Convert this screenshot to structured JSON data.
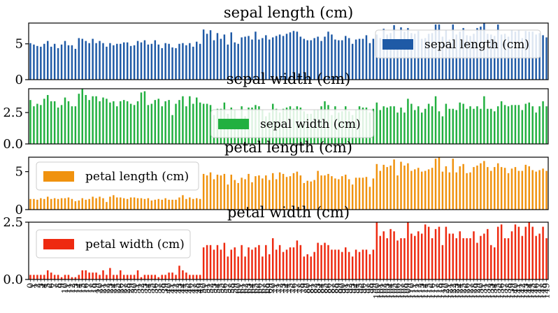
{
  "chart_data": [
    {
      "type": "bar",
      "title": "sepal length (cm)",
      "ylim": [
        0,
        7.9
      ],
      "yticks": [
        "0",
        "5"
      ],
      "ytick_values": [
        0,
        5
      ],
      "legend": "top-right",
      "series": [
        {
          "name": "sepal length (cm)",
          "color": "#1f5aa6",
          "values": [
            5.1,
            4.9,
            4.7,
            4.6,
            5.0,
            5.4,
            4.6,
            5.0,
            4.4,
            4.9,
            5.4,
            4.8,
            4.8,
            4.3,
            5.8,
            5.7,
            5.4,
            5.1,
            5.7,
            5.1,
            5.4,
            5.1,
            4.6,
            5.1,
            4.8,
            5.0,
            5.0,
            5.2,
            5.2,
            4.7,
            4.8,
            5.4,
            5.2,
            5.5,
            4.9,
            5.0,
            5.5,
            4.9,
            4.4,
            5.1,
            5.0,
            4.5,
            4.4,
            5.0,
            5.1,
            4.8,
            5.1,
            4.6,
            5.3,
            5.0,
            7.0,
            6.4,
            6.9,
            5.5,
            6.5,
            5.7,
            6.3,
            4.9,
            6.6,
            5.2,
            5.0,
            5.9,
            6.0,
            6.1,
            5.6,
            6.7,
            5.6,
            5.8,
            6.2,
            5.6,
            5.9,
            6.1,
            6.3,
            6.1,
            6.4,
            6.6,
            6.8,
            6.7,
            6.0,
            5.7,
            5.5,
            5.5,
            5.8,
            6.0,
            5.4,
            6.0,
            6.7,
            6.3,
            5.6,
            5.5,
            5.5,
            6.1,
            5.8,
            5.0,
            5.6,
            5.7,
            5.7,
            6.2,
            5.1,
            5.7,
            6.3,
            5.8,
            7.1,
            6.3,
            6.5,
            7.6,
            4.9,
            7.3,
            6.7,
            7.2,
            6.5,
            6.4,
            6.8,
            5.7,
            5.8,
            6.4,
            6.5,
            7.7,
            7.7,
            6.0,
            6.9,
            5.6,
            7.7,
            6.3,
            6.7,
            7.2,
            6.2,
            6.1,
            6.4,
            7.2,
            7.4,
            7.9,
            6.4,
            6.3,
            6.1,
            7.7,
            6.3,
            6.4,
            6.0,
            6.9,
            6.7,
            6.9,
            5.8,
            6.8,
            6.7,
            6.7,
            6.3,
            6.5,
            6.2,
            5.9
          ]
        }
      ]
    },
    {
      "type": "bar",
      "title": "sepal width (cm)",
      "ylim": [
        0,
        4.4
      ],
      "yticks": [
        "0.0",
        "2.5"
      ],
      "ytick_values": [
        0,
        2.5
      ],
      "legend": "center",
      "series": [
        {
          "name": "sepal width (cm)",
          "color": "#22b040",
          "values": [
            3.5,
            3.0,
            3.2,
            3.1,
            3.6,
            3.9,
            3.4,
            3.4,
            2.9,
            3.1,
            3.7,
            3.4,
            3.0,
            3.0,
            4.0,
            4.4,
            3.9,
            3.5,
            3.8,
            3.8,
            3.4,
            3.7,
            3.6,
            3.3,
            3.4,
            3.0,
            3.4,
            3.5,
            3.4,
            3.2,
            3.1,
            3.4,
            4.1,
            4.2,
            3.1,
            3.2,
            3.5,
            3.6,
            3.0,
            3.4,
            3.5,
            2.3,
            3.2,
            3.5,
            3.8,
            3.0,
            3.8,
            3.2,
            3.7,
            3.3,
            3.2,
            3.2,
            3.1,
            2.3,
            2.8,
            2.8,
            3.3,
            2.4,
            2.9,
            2.7,
            2.0,
            3.0,
            2.2,
            2.9,
            2.9,
            3.1,
            3.0,
            2.7,
            2.2,
            2.5,
            3.2,
            2.8,
            2.5,
            2.8,
            2.9,
            3.0,
            2.8,
            3.0,
            2.9,
            2.6,
            2.4,
            2.4,
            2.7,
            2.7,
            3.0,
            3.4,
            3.1,
            2.3,
            3.0,
            2.5,
            2.6,
            3.0,
            2.6,
            2.3,
            2.7,
            3.0,
            2.9,
            2.9,
            2.5,
            2.8,
            3.3,
            2.7,
            3.0,
            2.9,
            3.0,
            3.0,
            2.5,
            2.9,
            2.5,
            3.6,
            3.2,
            2.7,
            3.0,
            2.5,
            2.8,
            3.2,
            3.0,
            3.8,
            2.6,
            2.2,
            3.2,
            2.8,
            2.8,
            2.7,
            3.3,
            3.2,
            2.8,
            3.0,
            2.8,
            3.0,
            2.8,
            3.8,
            2.8,
            2.8,
            2.6,
            3.0,
            3.4,
            3.1,
            3.0,
            3.1,
            3.1,
            3.1,
            2.7,
            3.2,
            3.3,
            3.0,
            2.5,
            3.0,
            3.4,
            3.0
          ]
        }
      ]
    },
    {
      "type": "bar",
      "title": "petal length (cm)",
      "ylim": [
        0,
        6.9
      ],
      "yticks": [
        "0",
        "5"
      ],
      "ytick_values": [
        0,
        5
      ],
      "legend": "top-left",
      "series": [
        {
          "name": "petal length (cm)",
          "color": "#f0920e",
          "values": [
            1.4,
            1.4,
            1.3,
            1.5,
            1.4,
            1.7,
            1.4,
            1.5,
            1.4,
            1.5,
            1.5,
            1.6,
            1.4,
            1.1,
            1.2,
            1.5,
            1.3,
            1.4,
            1.7,
            1.5,
            1.7,
            1.5,
            1.0,
            1.7,
            1.9,
            1.6,
            1.6,
            1.5,
            1.4,
            1.6,
            1.6,
            1.5,
            1.5,
            1.4,
            1.5,
            1.2,
            1.3,
            1.4,
            1.3,
            1.5,
            1.3,
            1.3,
            1.3,
            1.6,
            1.9,
            1.4,
            1.6,
            1.4,
            1.5,
            1.4,
            4.7,
            4.5,
            4.9,
            4.0,
            4.6,
            4.5,
            4.7,
            3.3,
            4.6,
            3.9,
            3.5,
            4.2,
            4.0,
            4.7,
            3.6,
            4.4,
            4.5,
            4.1,
            4.5,
            3.9,
            4.8,
            4.0,
            4.9,
            4.7,
            4.3,
            4.4,
            4.8,
            5.0,
            4.5,
            3.5,
            3.8,
            3.7,
            3.9,
            5.1,
            4.5,
            4.5,
            4.7,
            4.4,
            4.1,
            4.0,
            4.4,
            4.6,
            4.0,
            3.3,
            4.2,
            4.2,
            4.2,
            4.3,
            3.0,
            4.1,
            6.0,
            5.1,
            5.9,
            5.6,
            5.8,
            6.6,
            4.5,
            6.3,
            5.8,
            6.1,
            5.1,
            5.3,
            5.5,
            5.0,
            5.1,
            5.3,
            5.5,
            6.7,
            6.9,
            5.0,
            5.7,
            4.9,
            6.7,
            4.9,
            5.7,
            6.0,
            4.8,
            4.9,
            5.6,
            5.8,
            6.1,
            6.4,
            5.6,
            5.1,
            5.6,
            6.1,
            5.6,
            5.5,
            4.8,
            5.4,
            5.6,
            5.1,
            5.1,
            5.9,
            5.7,
            5.2,
            5.0,
            5.2,
            5.4,
            5.1
          ]
        }
      ]
    },
    {
      "type": "bar",
      "title": "petal width (cm)",
      "ylim": [
        0,
        2.5
      ],
      "yticks": [
        "0.0",
        "2.5"
      ],
      "ytick_values": [
        0,
        2.5
      ],
      "legend": "top-left",
      "series": [
        {
          "name": "petal width (cm)",
          "color": "#ee2a10",
          "values": [
            0.2,
            0.2,
            0.2,
            0.2,
            0.2,
            0.4,
            0.3,
            0.2,
            0.2,
            0.1,
            0.2,
            0.2,
            0.1,
            0.1,
            0.2,
            0.4,
            0.4,
            0.3,
            0.3,
            0.3,
            0.2,
            0.4,
            0.2,
            0.5,
            0.2,
            0.2,
            0.4,
            0.2,
            0.2,
            0.2,
            0.2,
            0.4,
            0.1,
            0.2,
            0.2,
            0.2,
            0.2,
            0.1,
            0.2,
            0.2,
            0.3,
            0.3,
            0.2,
            0.6,
            0.4,
            0.3,
            0.2,
            0.2,
            0.2,
            0.2,
            1.4,
            1.5,
            1.5,
            1.3,
            1.5,
            1.3,
            1.6,
            1.0,
            1.3,
            1.4,
            1.0,
            1.5,
            1.0,
            1.4,
            1.3,
            1.4,
            1.5,
            1.0,
            1.5,
            1.1,
            1.8,
            1.3,
            1.5,
            1.2,
            1.3,
            1.4,
            1.4,
            1.7,
            1.5,
            1.0,
            1.1,
            1.0,
            1.2,
            1.6,
            1.5,
            1.6,
            1.5,
            1.3,
            1.3,
            1.3,
            1.2,
            1.4,
            1.2,
            1.0,
            1.3,
            1.2,
            1.3,
            1.3,
            1.1,
            1.3,
            2.5,
            1.9,
            2.1,
            1.8,
            2.2,
            2.1,
            1.7,
            1.8,
            1.8,
            2.5,
            2.0,
            1.9,
            2.1,
            2.0,
            2.4,
            2.3,
            1.8,
            2.2,
            2.3,
            1.5,
            2.3,
            2.0,
            2.0,
            1.8,
            2.1,
            1.8,
            1.8,
            1.8,
            2.1,
            1.6,
            1.9,
            2.0,
            2.2,
            1.5,
            1.4,
            2.3,
            2.4,
            1.8,
            1.8,
            2.1,
            2.4,
            2.3,
            1.9,
            2.3,
            2.5,
            2.3,
            1.9,
            2.0,
            2.3,
            1.8
          ]
        }
      ]
    }
  ],
  "x_tick_count": 150,
  "x_tick_start": 0
}
